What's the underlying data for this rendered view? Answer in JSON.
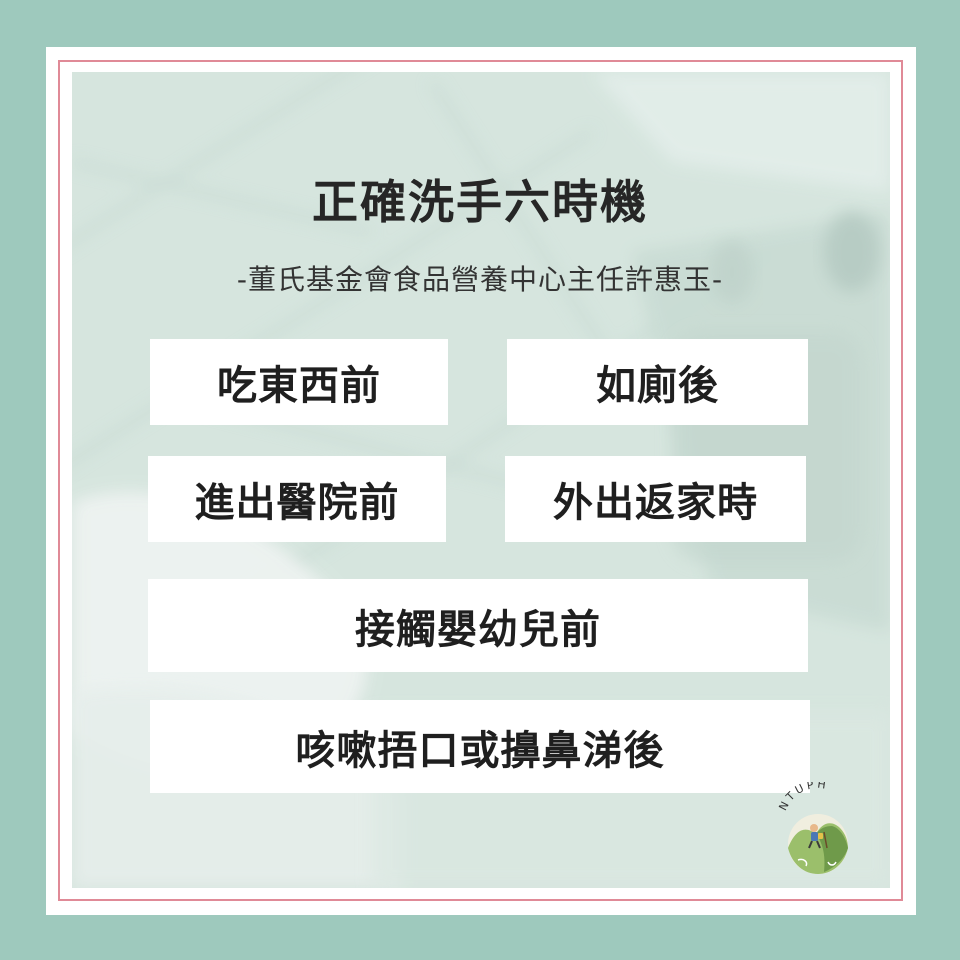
{
  "header": {
    "title": "正確洗手六時機",
    "subtitle": "-董氏基金會食品營養中心主任許惠玉-"
  },
  "moments": [
    "吃東西前",
    "如廁後",
    "進出醫院前",
    "外出返家時",
    "接觸嬰幼兒前",
    "咳嗽捂口或擤鼻涕後"
  ],
  "logo": {
    "text": "NTUPH",
    "icon": "mountain-hiker-icon"
  },
  "colors": {
    "outer_background": "#9ec9bd",
    "frame": "#ffffff",
    "border_line": "#e08a97",
    "photo_overlay": "#d7e6e0",
    "text": "#1f1f1f"
  }
}
